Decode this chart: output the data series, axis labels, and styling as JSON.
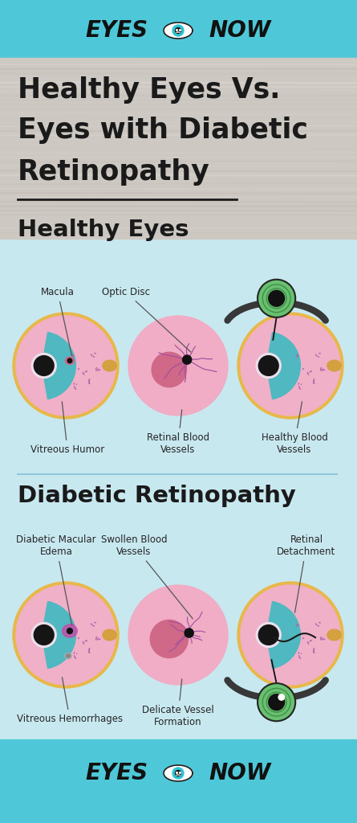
{
  "bg_teal": "#4ec8d8",
  "bg_light_blue": "#c8e8f0",
  "bg_wood": "#cdc8c2",
  "title_line1": "Healthy Eyes Vs.",
  "title_line2": "Eyes with Diabetic",
  "title_line3": "Retinopathy",
  "section1": "Healthy Eyes",
  "section2": "Diabetic Retinopathy",
  "header_label": "EYES",
  "header_label2": "NOW",
  "eye_pink": "#f0b0c8",
  "eye_orange_rim": "#e8b84a",
  "eye_teal": "#50b8c0",
  "eye_white_lens": "#e8e0e8",
  "eye_pupil": "#151515",
  "eye_nerve": "#d4a040",
  "eye_macula_healthy": "#c86888",
  "eye_macula_diabetic": "#c050a8",
  "vessel_purple": "#b060a8",
  "eyelid_dark": "#383838",
  "iris_green": "#68c070",
  "iris_green_dark": "#409048",
  "dark_text": "#252525",
  "line_color": "#90c8d8",
  "retina_pink": "#f0a8c0",
  "hem_gray": "#909090"
}
